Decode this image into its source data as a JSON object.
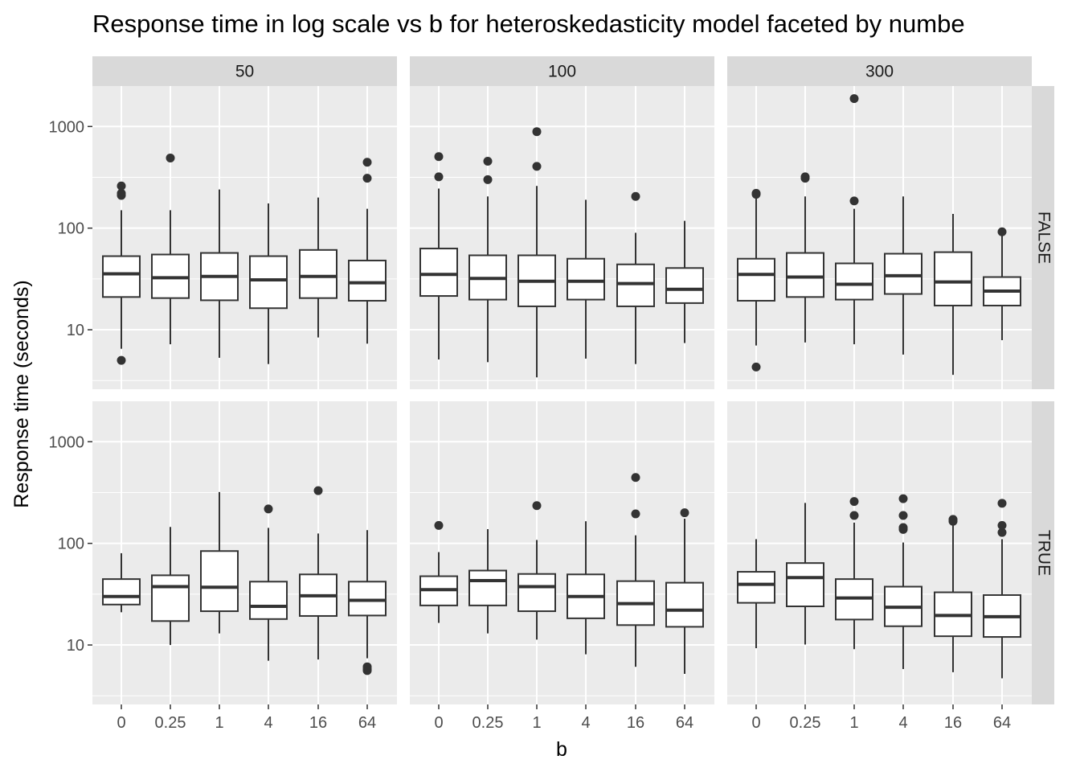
{
  "chart_data": {
    "type": "boxplot",
    "title": "Response time in log scale vs b for heteroskedasticity model faceted by numbe",
    "xlabel": "b",
    "ylabel": "Response time (seconds)",
    "y_scale": "log10",
    "ylim": [
      2.6,
      2500
    ],
    "y_ticks": [
      10,
      100,
      1000
    ],
    "y_tick_labels": [
      "10",
      "100",
      "1000"
    ],
    "categories": [
      "0",
      "0.25",
      "1",
      "4",
      "16",
      "64"
    ],
    "col_facets": [
      "50",
      "100",
      "300"
    ],
    "row_facets": [
      "FALSE",
      "TRUE"
    ],
    "grid": true,
    "colors": {
      "panel_bg": "#ebebeb",
      "grid": "#ffffff",
      "strip_bg": "#d9d9d9",
      "box_fill": "#ffffff",
      "line": "#333333",
      "outlier": "#333333"
    },
    "panels": [
      {
        "col": "50",
        "row": "FALSE",
        "boxes": [
          {
            "b": "0",
            "lower": 6.5,
            "q1": 21,
            "median": 35.5,
            "q3": 53,
            "upper": 150,
            "outliers": [
              5,
              210,
              220,
              260
            ]
          },
          {
            "b": "0.25",
            "lower": 7.2,
            "q1": 20.5,
            "median": 32.5,
            "q3": 55,
            "upper": 150,
            "outliers": [
              490
            ]
          },
          {
            "b": "1",
            "lower": 5.3,
            "q1": 19.5,
            "median": 33.5,
            "q3": 57,
            "upper": 240,
            "outliers": []
          },
          {
            "b": "4",
            "lower": 4.6,
            "q1": 16.3,
            "median": 31,
            "q3": 53,
            "upper": 175,
            "outliers": []
          },
          {
            "b": "16",
            "lower": 8.4,
            "q1": 20.5,
            "median": 33.5,
            "q3": 61,
            "upper": 200,
            "outliers": []
          },
          {
            "b": "64",
            "lower": 7.3,
            "q1": 19.3,
            "median": 29,
            "q3": 48,
            "upper": 155,
            "outliers": [
              310,
              445
            ]
          }
        ]
      },
      {
        "col": "100",
        "row": "FALSE",
        "boxes": [
          {
            "b": "0",
            "lower": 5.1,
            "q1": 21.5,
            "median": 35,
            "q3": 63,
            "upper": 245,
            "outliers": [
              320,
              505
            ]
          },
          {
            "b": "0.25",
            "lower": 4.8,
            "q1": 19.8,
            "median": 32,
            "q3": 54,
            "upper": 205,
            "outliers": [
              300,
              455
            ]
          },
          {
            "b": "1",
            "lower": 3.4,
            "q1": 17,
            "median": 30,
            "q3": 54,
            "upper": 260,
            "outliers": [
              405,
              890
            ]
          },
          {
            "b": "4",
            "lower": 5.2,
            "q1": 19.8,
            "median": 30,
            "q3": 50,
            "upper": 190,
            "outliers": []
          },
          {
            "b": "16",
            "lower": 4.6,
            "q1": 17,
            "median": 28.5,
            "q3": 44,
            "upper": 90,
            "outliers": [
              205
            ]
          },
          {
            "b": "64",
            "lower": 7.4,
            "q1": 18.3,
            "median": 25,
            "q3": 40.5,
            "upper": 118,
            "outliers": []
          }
        ]
      },
      {
        "col": "300",
        "row": "FALSE",
        "boxes": [
          {
            "b": "0",
            "lower": 7,
            "q1": 19.3,
            "median": 35,
            "q3": 50,
            "upper": 200,
            "outliers": [
              4.3,
              215,
              220
            ]
          },
          {
            "b": "0.25",
            "lower": 7.5,
            "q1": 21,
            "median": 33,
            "q3": 57,
            "upper": 205,
            "outliers": [
              310,
              320
            ]
          },
          {
            "b": "1",
            "lower": 7.2,
            "q1": 19.8,
            "median": 28,
            "q3": 45,
            "upper": 155,
            "outliers": [
              185,
              1880
            ]
          },
          {
            "b": "4",
            "lower": 5.7,
            "q1": 22.5,
            "median": 34,
            "q3": 56,
            "upper": 205,
            "outliers": []
          },
          {
            "b": "16",
            "lower": 3.6,
            "q1": 17.3,
            "median": 29.5,
            "q3": 58,
            "upper": 138,
            "outliers": []
          },
          {
            "b": "64",
            "lower": 7.9,
            "q1": 17.3,
            "median": 24,
            "q3": 33,
            "upper": 85,
            "outliers": [
              92
            ]
          }
        ]
      },
      {
        "col": "50",
        "row": "TRUE",
        "boxes": [
          {
            "b": "0",
            "lower": 21,
            "q1": 25,
            "median": 30,
            "q3": 44.5,
            "upper": 80,
            "outliers": []
          },
          {
            "b": "0.25",
            "lower": 10,
            "q1": 17.2,
            "median": 37.5,
            "q3": 48.5,
            "upper": 145,
            "outliers": []
          },
          {
            "b": "1",
            "lower": 13,
            "q1": 21.5,
            "median": 37,
            "q3": 84,
            "upper": 320,
            "outliers": []
          },
          {
            "b": "4",
            "lower": 7,
            "q1": 18,
            "median": 24,
            "q3": 42,
            "upper": 142,
            "outliers": [
              218
            ]
          },
          {
            "b": "16",
            "lower": 7.2,
            "q1": 19.3,
            "median": 30.5,
            "q3": 49.5,
            "upper": 125,
            "outliers": [
              330
            ]
          },
          {
            "b": "64",
            "lower": 7.4,
            "q1": 19.5,
            "median": 27.5,
            "q3": 42,
            "upper": 135,
            "outliers": [
              5.6,
              5.8,
              6.1
            ]
          }
        ]
      },
      {
        "col": "100",
        "row": "TRUE",
        "boxes": [
          {
            "b": "0",
            "lower": 16.5,
            "q1": 24.5,
            "median": 35,
            "q3": 47.5,
            "upper": 82,
            "outliers": [
              150
            ]
          },
          {
            "b": "0.25",
            "lower": 13,
            "q1": 24.5,
            "median": 43,
            "q3": 54,
            "upper": 138,
            "outliers": []
          },
          {
            "b": "1",
            "lower": 11.3,
            "q1": 21.5,
            "median": 37.5,
            "q3": 50,
            "upper": 108,
            "outliers": [
              235
            ]
          },
          {
            "b": "4",
            "lower": 8.1,
            "q1": 18.3,
            "median": 30,
            "q3": 49.5,
            "upper": 165,
            "outliers": []
          },
          {
            "b": "16",
            "lower": 6.1,
            "q1": 15.7,
            "median": 25.5,
            "q3": 42.5,
            "upper": 120,
            "outliers": [
              195,
              445
            ]
          },
          {
            "b": "64",
            "lower": 5.2,
            "q1": 15.1,
            "median": 22,
            "q3": 41,
            "upper": 175,
            "outliers": [
              200
            ]
          }
        ]
      },
      {
        "col": "300",
        "row": "TRUE",
        "boxes": [
          {
            "b": "0",
            "lower": 9.3,
            "q1": 26,
            "median": 39.5,
            "q3": 52.5,
            "upper": 110,
            "outliers": []
          },
          {
            "b": "0.25",
            "lower": 10.1,
            "q1": 24,
            "median": 46,
            "q3": 64,
            "upper": 250,
            "outliers": []
          },
          {
            "b": "1",
            "lower": 9.1,
            "q1": 17.8,
            "median": 29,
            "q3": 44.5,
            "upper": 160,
            "outliers": [
              188,
              258
            ]
          },
          {
            "b": "4",
            "lower": 5.8,
            "q1": 15.3,
            "median": 23.5,
            "q3": 37.5,
            "upper": 102,
            "outliers": [
              137,
              143,
              188,
              275
            ]
          },
          {
            "b": "16",
            "lower": 5.4,
            "q1": 12.2,
            "median": 19.5,
            "q3": 33,
            "upper": 150,
            "outliers": [
              165,
              172
            ]
          },
          {
            "b": "64",
            "lower": 4.7,
            "q1": 12,
            "median": 19,
            "q3": 31,
            "upper": 110,
            "outliers": [
              128,
              150,
              248
            ]
          }
        ]
      }
    ]
  }
}
